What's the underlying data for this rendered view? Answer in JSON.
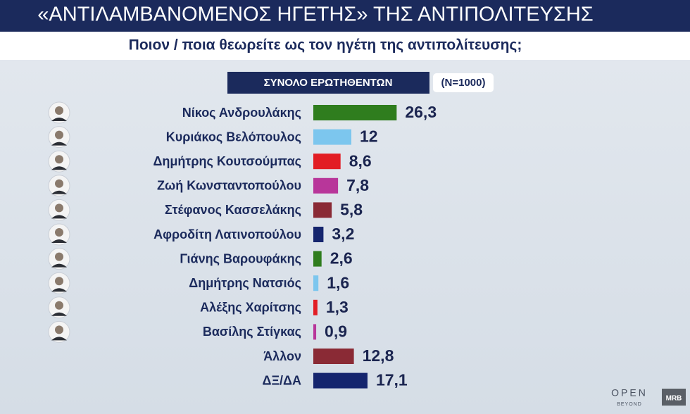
{
  "chart_data": {
    "type": "bar",
    "orientation": "horizontal",
    "title": "«ΑΝΤΙΛΑΜΒΑΝΟΜΕΝΟΣ ΗΓΕΤΗΣ» ΤΗΣ ΑΝΤΙΠΟΛΙΤΕΥΣΗΣ",
    "subtitle": "Ποιον / ποια θεωρείτε ως τον ηγέτη της αντιπολίτευσης;",
    "group_label": "ΣΥΝΟΛΟ ΕΡΩΤΗΘΕΝΤΩΝ",
    "sample_label": "(N=1000)",
    "categories": [
      "Νίκος Ανδρουλάκης",
      "Κυριάκος Βελόπουλος",
      "Δημήτρης Κουτσούμπας",
      "Ζωή Κωνσταντοπούλου",
      "Στέφανος Κασσελάκης",
      "Αφροδίτη Λατινοπούλου",
      "Γιάνης Βαρουφάκης",
      "Δημήτρης Νατσιός",
      "Αλέξης Χαρίτσης",
      "Βασίλης Στίγκας",
      "Άλλον",
      "ΔΞ/ΔΑ"
    ],
    "values": [
      26.3,
      12,
      8.6,
      7.8,
      5.8,
      3.2,
      2.6,
      1.6,
      1.3,
      0.9,
      12.8,
      17.1
    ],
    "value_labels": [
      "26,3",
      "12",
      "8,6",
      "7,8",
      "5,8",
      "3,2",
      "2,6",
      "1,6",
      "1,3",
      "0,9",
      "12,8",
      "17,1"
    ],
    "colors": [
      "#2f7d1e",
      "#7cc6ee",
      "#e21d24",
      "#b8369a",
      "#8a2a35",
      "#15256e",
      "#2f7d1e",
      "#7cc6ee",
      "#e21d24",
      "#b8369a",
      "#8a2a35",
      "#15256e"
    ],
    "logos": [
      "OPEN",
      "BEYOND",
      "MRB"
    ]
  }
}
